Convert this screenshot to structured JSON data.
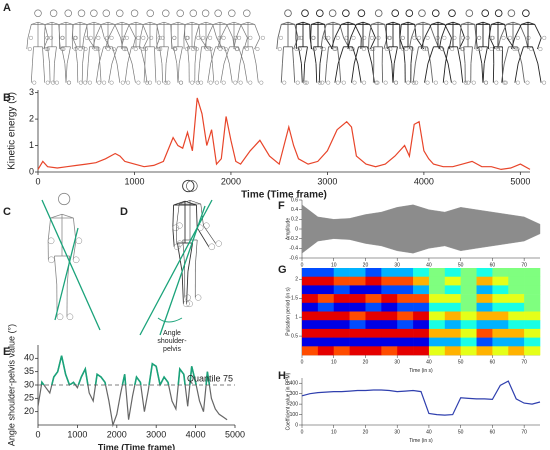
{
  "panels": [
    "A",
    "B",
    "C",
    "D",
    "E",
    "F",
    "G",
    "H"
  ],
  "annotation": [
    "Angle",
    "shoulder-",
    "pelvis"
  ],
  "chart_data": [
    {
      "type": "line",
      "color": "#e8452a",
      "ylabel": "Kinetic energy (J)",
      "xlabel": "Time (Time frame)",
      "xlim": [
        0,
        5100
      ],
      "ylim": [
        0,
        3.1
      ],
      "xticks": [
        0,
        1000,
        2000,
        3000,
        4000,
        5000
      ],
      "yticks": [
        0,
        1,
        2,
        3
      ],
      "x": [
        0,
        50,
        100,
        200,
        300,
        400,
        500,
        600,
        700,
        800,
        850,
        900,
        1000,
        1100,
        1200,
        1300,
        1400,
        1450,
        1500,
        1550,
        1600,
        1650,
        1700,
        1750,
        1800,
        1850,
        1900,
        1950,
        2000,
        2050,
        2100,
        2200,
        2300,
        2400,
        2500,
        2550,
        2600,
        2650,
        2700,
        2800,
        2900,
        3000,
        3100,
        3200,
        3250,
        3300,
        3400,
        3500,
        3600,
        3700,
        3800,
        3850,
        3900,
        3950,
        4000,
        4050,
        4100,
        4200,
        4300,
        4400,
        4500,
        4600,
        4700,
        4800,
        4900,
        5000,
        5100
      ],
      "values": [
        0.1,
        0.4,
        0.2,
        0.15,
        0.2,
        0.25,
        0.3,
        0.35,
        0.5,
        0.7,
        0.6,
        0.4,
        0.3,
        0.2,
        0.25,
        0.4,
        1.3,
        1.0,
        0.9,
        1.5,
        0.8,
        2.8,
        2.2,
        1.0,
        1.6,
        0.3,
        0.5,
        2.1,
        1.2,
        0.4,
        0.3,
        0.8,
        1.2,
        0.6,
        0.3,
        1.0,
        1.7,
        1.0,
        0.5,
        0.3,
        0.4,
        0.8,
        1.6,
        1.9,
        1.7,
        0.6,
        0.3,
        0.2,
        0.3,
        0.6,
        1.0,
        0.6,
        1.8,
        1.9,
        0.8,
        0.5,
        0.3,
        0.2,
        0.2,
        0.3,
        0.4,
        0.2,
        0.2,
        0.1,
        0.15,
        0.3,
        0.1
      ]
    },
    {
      "type": "line",
      "color": "#666666",
      "highlight_color": "#1aa37a",
      "ylabel": "Angle shoulder-pelvis value (°)",
      "xlabel": "Time (Time frame)",
      "threshold": 30,
      "threshold_label": "Quantile 75",
      "xlim": [
        0,
        5000
      ],
      "ylim": [
        15,
        45
      ],
      "xticks": [
        0,
        1000,
        2000,
        3000,
        4000,
        5000
      ],
      "yticks": [
        20,
        25,
        30,
        35,
        40
      ],
      "x": [
        0,
        100,
        200,
        300,
        400,
        500,
        600,
        700,
        800,
        900,
        1000,
        1100,
        1200,
        1300,
        1400,
        1500,
        1600,
        1700,
        1800,
        1900,
        2000,
        2100,
        2200,
        2300,
        2400,
        2500,
        2600,
        2700,
        2800,
        2900,
        3000,
        3100,
        3200,
        3300,
        3400,
        3500,
        3600,
        3700,
        3800,
        3900,
        4000,
        4100,
        4200,
        4300,
        4400,
        4500,
        4600,
        4700,
        4800
      ],
      "values": [
        22,
        31,
        29,
        27,
        33,
        35,
        41,
        34,
        30,
        31,
        29,
        33,
        36,
        27,
        24,
        34,
        33,
        31,
        24,
        15,
        19,
        27,
        34,
        17,
        26,
        33,
        31,
        20,
        28,
        38,
        37,
        30,
        33,
        31,
        24,
        21,
        36,
        34,
        22,
        37,
        31,
        24,
        20,
        35,
        25,
        21,
        19,
        18,
        17
      ]
    },
    {
      "type": "area",
      "color": "#8c8c8c",
      "ylabel": "Amplitude",
      "xlabel": "Time (in s)",
      "xlim": [
        0,
        75
      ],
      "ylim": [
        -0.6,
        0.6
      ],
      "xticks": [
        0,
        10,
        20,
        30,
        40,
        50,
        60,
        70
      ],
      "yticks": [
        -0.6,
        -0.4,
        -0.2,
        0,
        0.2,
        0.4,
        0.6
      ],
      "x": [
        0,
        5,
        10,
        15,
        20,
        25,
        30,
        35,
        40,
        45,
        50,
        55,
        60,
        65,
        70,
        75
      ],
      "values": [
        0.5,
        0.25,
        0.2,
        0.22,
        0.3,
        0.35,
        0.45,
        0.5,
        0.4,
        0.35,
        0.45,
        0.4,
        0.35,
        0.3,
        0.25,
        0.1
      ]
    },
    {
      "type": "heatmap",
      "ylabel": "Pulsation period (in s)",
      "xlabel": "Time (in s)",
      "xlim": [
        0,
        75
      ],
      "ylim": [
        0,
        2.3
      ],
      "xticks": [
        0,
        10,
        20,
        30,
        40,
        50,
        60,
        70
      ],
      "yticks": [
        0.5,
        1,
        1.5,
        2
      ],
      "matrix": [
        [
          0.2,
          0.2,
          0.3,
          0.3,
          0.2,
          0.3,
          0.3,
          0.4,
          0.5,
          0.4,
          0.5,
          0.4,
          0.5,
          0.5,
          0.5
        ],
        [
          0.9,
          0.9,
          0.8,
          0.8,
          0.9,
          0.8,
          0.8,
          0.7,
          0.5,
          0.6,
          0.5,
          0.7,
          0.6,
          0.5,
          0.5
        ],
        [
          0.1,
          0.1,
          0.2,
          0.1,
          0.1,
          0.2,
          0.2,
          0.3,
          0.5,
          0.4,
          0.5,
          0.3,
          0.4,
          0.5,
          0.5
        ],
        [
          0.9,
          0.8,
          0.9,
          0.9,
          0.8,
          0.9,
          0.8,
          0.8,
          0.6,
          0.6,
          0.5,
          0.7,
          0.6,
          0.6,
          0.5
        ],
        [
          0.1,
          0.2,
          0.1,
          0.1,
          0.2,
          0.1,
          0.2,
          0.2,
          0.4,
          0.4,
          0.5,
          0.3,
          0.4,
          0.4,
          0.5
        ],
        [
          0.9,
          0.9,
          0.9,
          0.8,
          0.9,
          0.9,
          0.8,
          0.9,
          0.6,
          0.7,
          0.6,
          0.7,
          0.7,
          0.6,
          0.6
        ],
        [
          0.1,
          0.1,
          0.1,
          0.2,
          0.1,
          0.1,
          0.2,
          0.1,
          0.4,
          0.3,
          0.4,
          0.3,
          0.3,
          0.4,
          0.4
        ],
        [
          0.9,
          0.9,
          0.9,
          0.9,
          0.9,
          0.9,
          0.9,
          0.9,
          0.7,
          0.7,
          0.6,
          0.8,
          0.7,
          0.7,
          0.6
        ],
        [
          0.1,
          0.1,
          0.1,
          0.1,
          0.1,
          0.1,
          0.1,
          0.1,
          0.3,
          0.3,
          0.4,
          0.2,
          0.3,
          0.3,
          0.4
        ],
        [
          0.8,
          0.9,
          0.8,
          0.9,
          0.9,
          0.8,
          0.9,
          0.9,
          0.6,
          0.7,
          0.6,
          0.7,
          0.6,
          0.7,
          0.6
        ]
      ]
    },
    {
      "type": "line",
      "color": "#2f3fae",
      "ylabel": "Coefficient value (in BPM)",
      "xlabel": "Time (in s)",
      "xlim": [
        0,
        75
      ],
      "ylim": [
        0,
        450
      ],
      "xticks": [
        0,
        10,
        20,
        30,
        40,
        50,
        60,
        70
      ],
      "yticks": [
        0,
        100,
        200,
        300,
        400
      ],
      "x": [
        0,
        2.5,
        5,
        7.5,
        10,
        12.5,
        15,
        17.5,
        20,
        22.5,
        25,
        27.5,
        30,
        32.5,
        35,
        37.5,
        40,
        42.5,
        45,
        47.5,
        50,
        52.5,
        55,
        57.5,
        60,
        62.5,
        65,
        67.5,
        70,
        72.5,
        75
      ],
      "values": [
        280,
        300,
        310,
        315,
        320,
        320,
        325,
        330,
        330,
        335,
        335,
        330,
        320,
        325,
        330,
        320,
        110,
        100,
        95,
        100,
        260,
        255,
        250,
        250,
        245,
        380,
        420,
        250,
        210,
        200,
        220
      ]
    }
  ]
}
